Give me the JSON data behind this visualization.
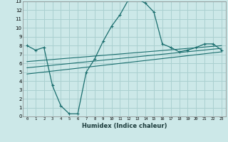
{
  "xlabel": "Humidex (Indice chaleur)",
  "bg_color": "#cce8e8",
  "grid_color": "#aad0d0",
  "line_color": "#1a6e6e",
  "xlim": [
    -0.5,
    23.5
  ],
  "ylim": [
    0,
    13
  ],
  "xticks": [
    0,
    1,
    2,
    3,
    4,
    5,
    6,
    7,
    8,
    9,
    10,
    11,
    12,
    13,
    14,
    15,
    16,
    17,
    18,
    19,
    20,
    21,
    22,
    23
  ],
  "yticks": [
    0,
    1,
    2,
    3,
    4,
    5,
    6,
    7,
    8,
    9,
    10,
    11,
    12,
    13
  ],
  "series1_x": [
    0,
    1,
    2,
    3,
    4,
    5,
    6,
    7,
    8,
    9,
    10,
    11,
    12,
    13,
    14,
    15,
    16,
    17,
    18,
    19,
    20,
    21,
    22,
    23
  ],
  "series1_y": [
    8.0,
    7.5,
    7.8,
    3.5,
    1.2,
    0.3,
    0.3,
    5.0,
    6.5,
    8.5,
    10.2,
    11.5,
    13.2,
    13.3,
    12.8,
    11.8,
    8.2,
    7.8,
    7.3,
    7.5,
    7.8,
    8.2,
    8.2,
    7.5
  ],
  "series2_x": [
    0,
    23
  ],
  "series2_y": [
    4.8,
    7.3
  ],
  "series3_x": [
    0,
    23
  ],
  "series3_y": [
    5.5,
    7.7
  ],
  "series4_x": [
    0,
    23
  ],
  "series4_y": [
    6.2,
    8.0
  ]
}
